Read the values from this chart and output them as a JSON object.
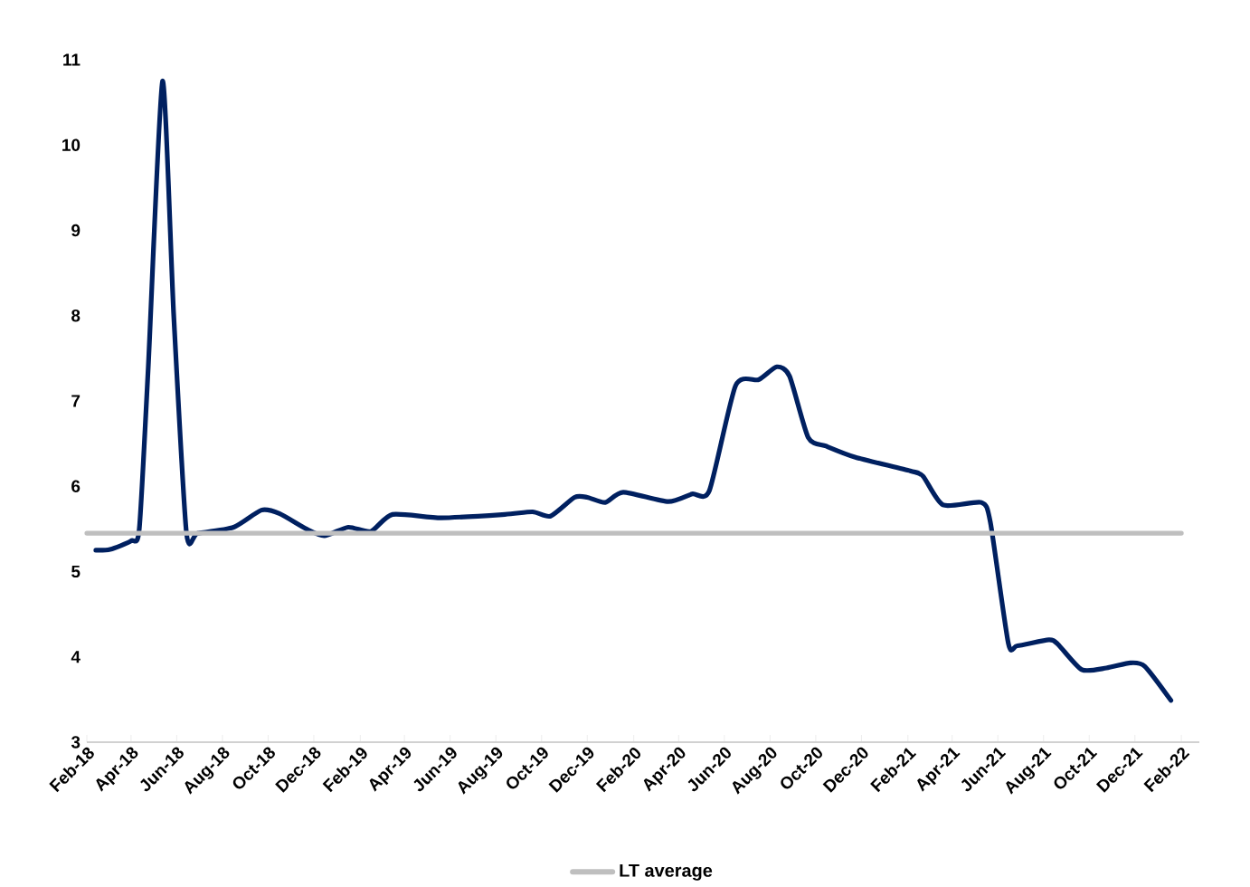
{
  "chart_data": {
    "type": "line",
    "legend": "bottom",
    "xlim": [
      "2018-02-01",
      "2022-02-25"
    ],
    "xticks": [
      {
        "value": "2018-02-01",
        "label": "Feb-18"
      },
      {
        "value": "2018-04-01",
        "label": "Apr-18"
      },
      {
        "value": "2018-06-01",
        "label": "Jun-18"
      },
      {
        "value": "2018-08-01",
        "label": "Aug-18"
      },
      {
        "value": "2018-10-01",
        "label": "Oct-18"
      },
      {
        "value": "2018-12-01",
        "label": "Dec-18"
      },
      {
        "value": "2019-02-01",
        "label": "Feb-19"
      },
      {
        "value": "2019-04-01",
        "label": "Apr-19"
      },
      {
        "value": "2019-06-01",
        "label": "Jun-19"
      },
      {
        "value": "2019-08-01",
        "label": "Aug-19"
      },
      {
        "value": "2019-10-01",
        "label": "Oct-19"
      },
      {
        "value": "2019-12-01",
        "label": "Dec-19"
      },
      {
        "value": "2020-02-01",
        "label": "Feb-20"
      },
      {
        "value": "2020-04-01",
        "label": "Apr-20"
      },
      {
        "value": "2020-06-01",
        "label": "Jun-20"
      },
      {
        "value": "2020-08-01",
        "label": "Aug-20"
      },
      {
        "value": "2020-10-01",
        "label": "Oct-20"
      },
      {
        "value": "2020-12-01",
        "label": "Dec-20"
      },
      {
        "value": "2021-02-01",
        "label": "Feb-21"
      },
      {
        "value": "2021-04-01",
        "label": "Apr-21"
      },
      {
        "value": "2021-06-01",
        "label": "Jun-21"
      },
      {
        "value": "2021-08-01",
        "label": "Aug-21"
      },
      {
        "value": "2021-10-01",
        "label": "Oct-21"
      },
      {
        "value": "2021-12-01",
        "label": "Dec-21"
      },
      {
        "value": "2022-02-01",
        "label": "Feb-22"
      }
    ],
    "ylim": [
      3,
      11
    ],
    "yticks": [
      3,
      4,
      5,
      6,
      7,
      8,
      9,
      10,
      11
    ],
    "series": [
      {
        "color": "#002060",
        "x": [
          "2018-02-13",
          "2018-03-04",
          "2018-04-01",
          "2018-04-12",
          "2018-04-24",
          "2018-05-13",
          "2018-05-28",
          "2018-06-14",
          "2018-06-29",
          "2018-08-16",
          "2018-09-22",
          "2018-10-16",
          "2018-11-21",
          "2018-12-15",
          "2019-01-16",
          "2019-02-15",
          "2019-03-16",
          "2019-05-20",
          "2019-08-13",
          "2019-09-19",
          "2019-10-13",
          "2019-11-14",
          "2019-12-01",
          "2019-12-25",
          "2020-01-18",
          "2020-03-18",
          "2020-04-19",
          "2020-05-12",
          "2020-06-16",
          "2020-07-17",
          "2020-08-10",
          "2020-08-27",
          "2020-09-21",
          "2020-10-15",
          "2020-11-23",
          "2021-02-04",
          "2021-02-21",
          "2021-03-20",
          "2021-05-10",
          "2021-05-22",
          "2021-06-15",
          "2021-06-27",
          "2021-08-08",
          "2021-08-20",
          "2021-09-21",
          "2021-10-24",
          "2021-11-25",
          "2021-12-14",
          "2022-01-18"
        ],
        "values": [
          5.25,
          5.26,
          5.36,
          5.5,
          7.4,
          10.75,
          8.0,
          5.45,
          5.45,
          5.52,
          5.72,
          5.68,
          5.5,
          5.42,
          5.52,
          5.47,
          5.67,
          5.63,
          5.67,
          5.7,
          5.65,
          5.87,
          5.87,
          5.81,
          5.93,
          5.82,
          5.91,
          5.95,
          7.18,
          7.25,
          7.4,
          7.29,
          6.57,
          6.47,
          6.34,
          6.18,
          6.12,
          5.78,
          5.81,
          5.58,
          4.16,
          4.13,
          4.2,
          4.15,
          3.85,
          3.87,
          3.93,
          3.89,
          3.49
        ]
      },
      {
        "name": "LT average",
        "color": "#bfbfbf",
        "x": [
          "2018-02-01",
          "2022-02-01"
        ],
        "values": [
          5.45,
          5.45
        ]
      }
    ]
  }
}
